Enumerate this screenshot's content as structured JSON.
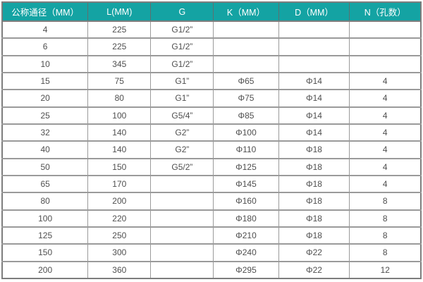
{
  "colors": {
    "header_bg": "#14a3a3",
    "header_text": "#ffffff",
    "cell_text": "#4f4f4f",
    "grid_border": "#9a9a9a",
    "outer_border": "#7d7d7d",
    "row_bg": "#ffffff"
  },
  "chart_data": {
    "type": "table",
    "title": "",
    "columns": [
      "公称通径（MM）",
      "L(MM)",
      "G",
      "K（MM）",
      "D（MM）",
      "N（孔数）"
    ],
    "column_widths_pct": [
      20.5,
      15,
      15,
      15.5,
      17,
      17
    ],
    "rows": [
      [
        "4",
        "225",
        "G1/2”",
        "",
        "",
        ""
      ],
      [
        "6",
        "225",
        "G1/2”",
        "",
        "",
        ""
      ],
      [
        "10",
        "345",
        "G1/2”",
        "",
        "",
        ""
      ],
      [
        "15",
        "75",
        "G1”",
        "Φ65",
        "Φ14",
        "4"
      ],
      [
        "20",
        "80",
        "G1”",
        "Φ75",
        "Φ14",
        "4"
      ],
      [
        "25",
        "100",
        "G5/4”",
        "Φ85",
        "Φ14",
        "4"
      ],
      [
        "32",
        "140",
        "G2”",
        "Φ100",
        "Φ14",
        "4"
      ],
      [
        "40",
        "140",
        "G2”",
        "Φ110",
        "Φ18",
        "4"
      ],
      [
        "50",
        "150",
        "G5/2”",
        "Φ125",
        "Φ18",
        "4"
      ],
      [
        "65",
        "170",
        "",
        "Φ145",
        "Φ18",
        "4"
      ],
      [
        "80",
        "200",
        "",
        "Φ160",
        "Φ18",
        "8"
      ],
      [
        "100",
        "220",
        "",
        "Φ180",
        "Φ18",
        "8"
      ],
      [
        "125",
        "250",
        "",
        "Φ210",
        "Φ18",
        "8"
      ],
      [
        "150",
        "300",
        "",
        "Φ240",
        "Φ22",
        "8"
      ],
      [
        "200",
        "360",
        "",
        "Φ295",
        "Φ22",
        "12"
      ]
    ]
  }
}
